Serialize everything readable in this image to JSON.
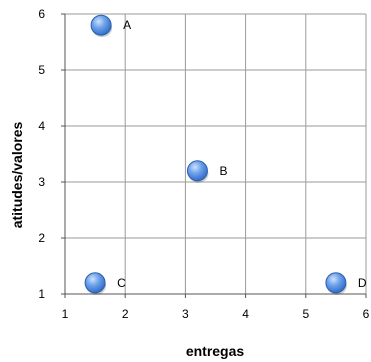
{
  "chart_data": {
    "type": "scatter",
    "xlabel": "entregas",
    "ylabel": "atitudes/valores",
    "xlim": [
      1,
      6
    ],
    "ylim": [
      1,
      6
    ],
    "xticks": [
      "1",
      "2",
      "3",
      "4",
      "5",
      "6"
    ],
    "yticks": [
      "1",
      "2",
      "3",
      "4",
      "5",
      "6"
    ],
    "grid": true,
    "marker_color": "#4a86d8",
    "points": [
      {
        "label": "A",
        "x": 1.6,
        "y": 5.8
      },
      {
        "label": "B",
        "x": 3.2,
        "y": 3.2
      },
      {
        "label": "C",
        "x": 1.5,
        "y": 1.2
      },
      {
        "label": "D",
        "x": 5.5,
        "y": 1.2
      }
    ]
  }
}
